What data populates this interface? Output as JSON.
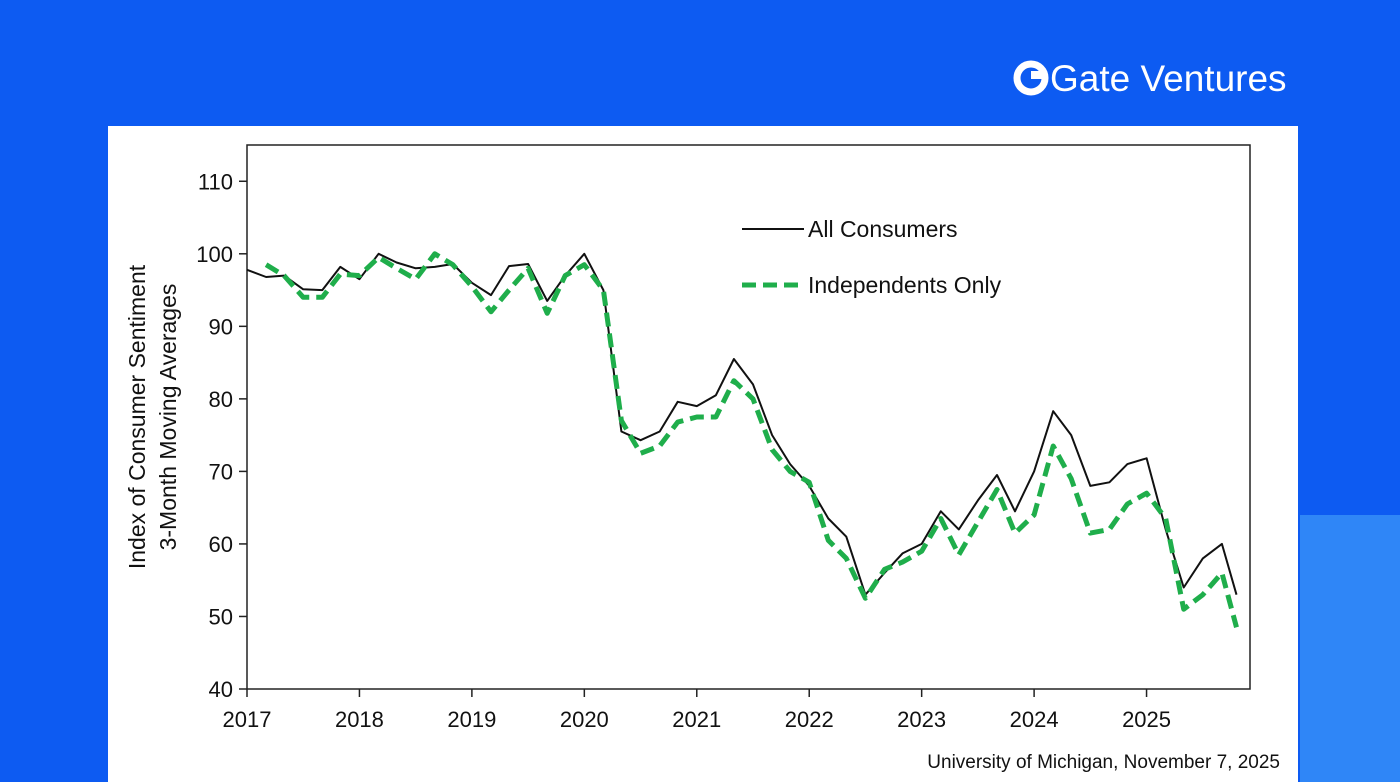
{
  "brand": "Gate Ventures",
  "chart_data": {
    "type": "line",
    "y_label": [
      "Index of Consumer Sentiment",
      "3-Month Moving Averages"
    ],
    "source": "University of Michigan, November 7, 2025",
    "x": [
      2017,
      2017.17,
      2017.33,
      2017.5,
      2017.67,
      2017.83,
      2018,
      2018.17,
      2018.33,
      2018.5,
      2018.67,
      2018.83,
      2019,
      2019.17,
      2019.33,
      2019.5,
      2019.67,
      2019.83,
      2020,
      2020.17,
      2020.33,
      2020.5,
      2020.67,
      2020.83,
      2021,
      2021.17,
      2021.33,
      2021.5,
      2021.67,
      2021.83,
      2022,
      2022.17,
      2022.33,
      2022.5,
      2022.67,
      2022.83,
      2023,
      2023.17,
      2023.33,
      2023.5,
      2023.67,
      2023.83,
      2024,
      2024.17,
      2024.33,
      2024.5,
      2024.67,
      2024.83,
      2025,
      2025.17,
      2025.33,
      2025.5,
      2025.67,
      2025.8
    ],
    "series": [
      {
        "name": "All Consumers",
        "color": "#111111",
        "style": "solid",
        "values": [
          97.8,
          96.8,
          97.0,
          95.1,
          95.0,
          98.2,
          96.5,
          100.0,
          98.8,
          98.0,
          98.2,
          98.6,
          96.0,
          94.3,
          98.3,
          98.6,
          93.5,
          97.0,
          100.0,
          95.0,
          75.5,
          74.3,
          75.5,
          79.6,
          79.0,
          80.5,
          85.5,
          82.0,
          75.0,
          71.0,
          68.0,
          63.5,
          61.0,
          53.0,
          56.0,
          58.7,
          60.0,
          64.5,
          62.0,
          66.0,
          69.5,
          64.5,
          70.0,
          78.3,
          75.0,
          68.0,
          68.5,
          71.0,
          71.8,
          62.0,
          54.0,
          58.0,
          60.0,
          53.0
        ]
      },
      {
        "name": "Independents Only",
        "color": "#1fae4b",
        "style": "dashed",
        "values": [
          null,
          98.5,
          97.0,
          94.0,
          94.0,
          97.2,
          97.0,
          99.5,
          98.0,
          96.5,
          100.0,
          98.5,
          95.5,
          92.0,
          95.0,
          98.0,
          91.8,
          97.0,
          98.5,
          95.0,
          77.0,
          72.5,
          73.5,
          76.8,
          77.5,
          77.5,
          82.5,
          80.0,
          73.0,
          70.0,
          68.5,
          60.5,
          58.0,
          52.5,
          56.5,
          57.5,
          59.0,
          63.5,
          58.5,
          63.0,
          67.5,
          61.5,
          64.0,
          73.5,
          69.0,
          61.5,
          62.0,
          65.5,
          67.0,
          63.5,
          51.0,
          53.0,
          56.0,
          48.5
        ]
      }
    ],
    "xlim": [
      2017,
      2025.92
    ],
    "ylim": [
      40,
      115
    ],
    "xticks": [
      2017,
      2018,
      2019,
      2020,
      2021,
      2022,
      2023,
      2024,
      2025
    ],
    "yticks": [
      40,
      50,
      60,
      70,
      80,
      90,
      100,
      110
    ],
    "legend": "upper center"
  }
}
